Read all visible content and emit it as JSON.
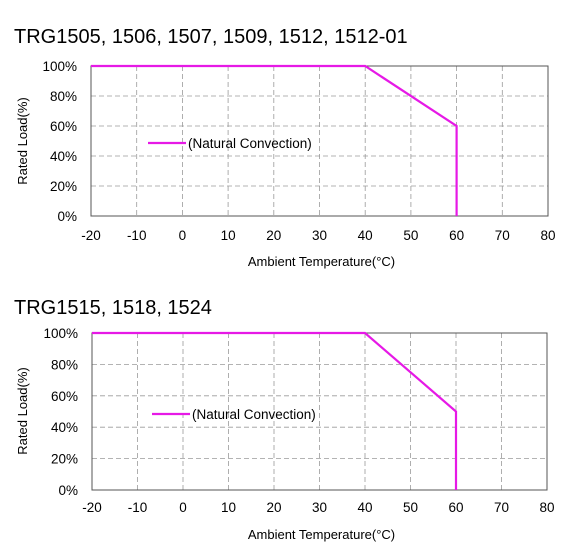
{
  "chart_data": [
    {
      "type": "line",
      "title": "TRG1505, 1506, 1507, 1509, 1512, 1512-01",
      "xlabel": "Ambient Temperature(°C)",
      "ylabel": "Rated Load(%)",
      "xlim": [
        -20,
        80
      ],
      "ylim": [
        0,
        100
      ],
      "xticks": [
        "-20",
        "-10",
        "0",
        "10",
        "20",
        "30",
        "40",
        "50",
        "60",
        "70",
        "80"
      ],
      "yticks": [
        "0%",
        "20%",
        "40%",
        "60%",
        "80%",
        "100%"
      ],
      "grid": true,
      "legend_position": "center-left",
      "series": [
        {
          "name": "(Natural Convection)",
          "color": "#e619e6",
          "x": [
            -20,
            40,
            60,
            60
          ],
          "y": [
            100,
            100,
            60,
            0
          ]
        }
      ]
    },
    {
      "type": "line",
      "title": "TRG1515, 1518, 1524",
      "xlabel": "Ambient Temperature(°C)",
      "ylabel": "Rated Load(%)",
      "xlim": [
        -20,
        80
      ],
      "ylim": [
        0,
        100
      ],
      "xticks": [
        "-20",
        "-10",
        "0",
        "10",
        "20",
        "30",
        "40",
        "50",
        "60",
        "70",
        "80"
      ],
      "yticks": [
        "0%",
        "20%",
        "40%",
        "60%",
        "80%",
        "100%"
      ],
      "grid": true,
      "legend_position": "center-left",
      "series": [
        {
          "name": "(Natural Convection)",
          "color": "#e619e6",
          "x": [
            -20,
            40,
            60,
            60
          ],
          "y": [
            100,
            100,
            50,
            0
          ]
        }
      ]
    }
  ]
}
